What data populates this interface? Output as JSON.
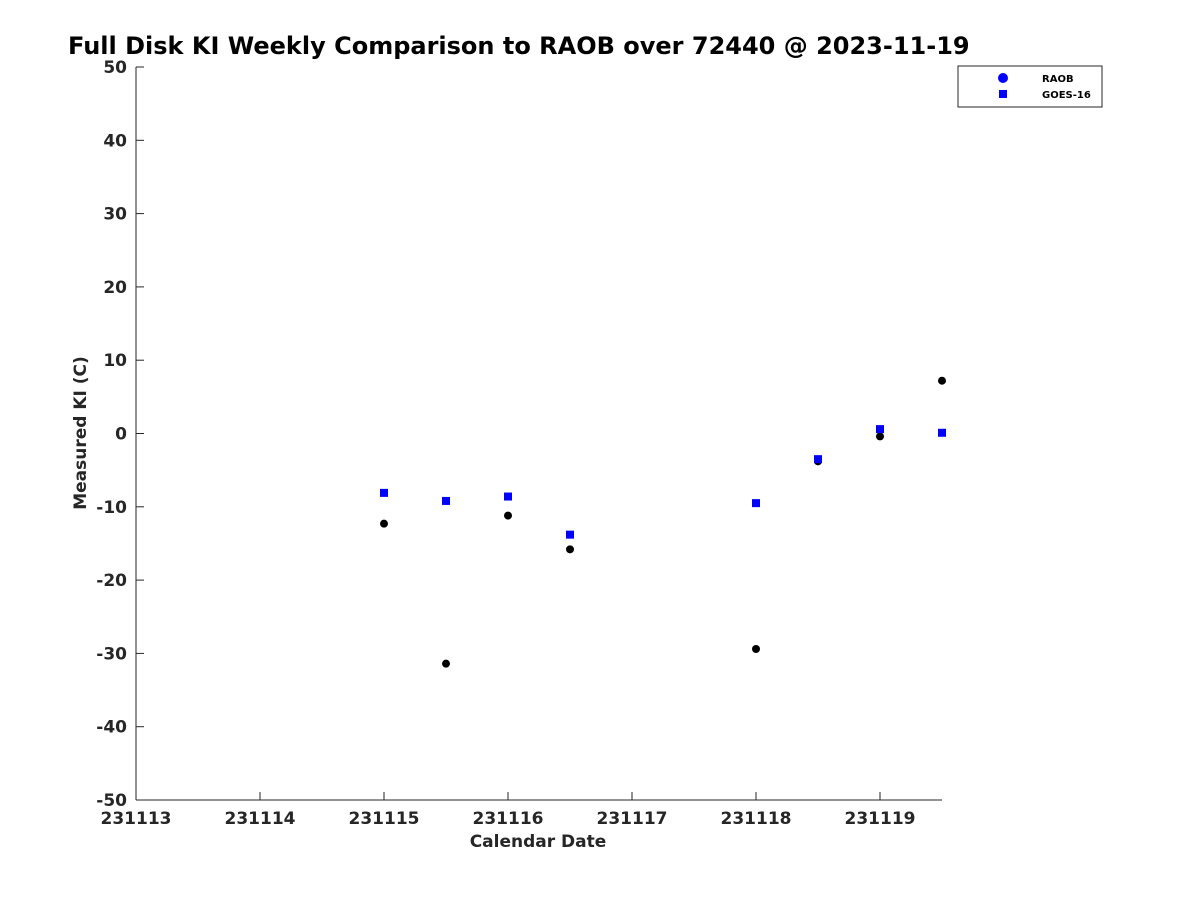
{
  "chart_data": {
    "type": "scatter",
    "title": "Full Disk KI Weekly Comparison to RAOB over 72440 @ 2023-11-19",
    "xlabel": "Calendar Date",
    "ylabel": "Measured KI (C)",
    "xlim": [
      231113,
      231119.5
    ],
    "ylim": [
      -50,
      50
    ],
    "xticks": [
      231113,
      231114,
      231115,
      231116,
      231117,
      231118,
      231119
    ],
    "xtick_labels": [
      "231113",
      "231114",
      "231115",
      "231116",
      "231117",
      "231118",
      "231119"
    ],
    "yticks": [
      50,
      40,
      30,
      20,
      10,
      0,
      -10,
      -20,
      -30,
      -40,
      -50
    ],
    "ytick_labels": [
      "50",
      "40",
      "30",
      "20",
      "10",
      "0",
      "-10",
      "-20",
      "-30",
      "-40",
      "-50"
    ],
    "grid": false,
    "legend": "top-right",
    "series": [
      {
        "name": "RAOB",
        "marker": "circle",
        "color": "#000000",
        "legend_color": "#0000ff",
        "points": [
          {
            "x": 231115,
            "y": -12.3
          },
          {
            "x": 231115.5,
            "y": -31.4
          },
          {
            "x": 231116,
            "y": -11.2
          },
          {
            "x": 231116.5,
            "y": -15.8
          },
          {
            "x": 231118,
            "y": -29.4
          },
          {
            "x": 231118.5,
            "y": -3.8
          },
          {
            "x": 231119,
            "y": -0.4
          },
          {
            "x": 231119.5,
            "y": 7.2
          }
        ]
      },
      {
        "name": "GOES-16",
        "marker": "square",
        "color": "#0000ff",
        "legend_color": "#0000ff",
        "points": [
          {
            "x": 231115,
            "y": -8.1
          },
          {
            "x": 231115.5,
            "y": -9.2
          },
          {
            "x": 231116,
            "y": -8.6
          },
          {
            "x": 231116.5,
            "y": -13.8
          },
          {
            "x": 231118,
            "y": -9.5
          },
          {
            "x": 231118.5,
            "y": -3.5
          },
          {
            "x": 231119,
            "y": 0.6
          },
          {
            "x": 231119.5,
            "y": 0.1
          }
        ]
      }
    ]
  }
}
